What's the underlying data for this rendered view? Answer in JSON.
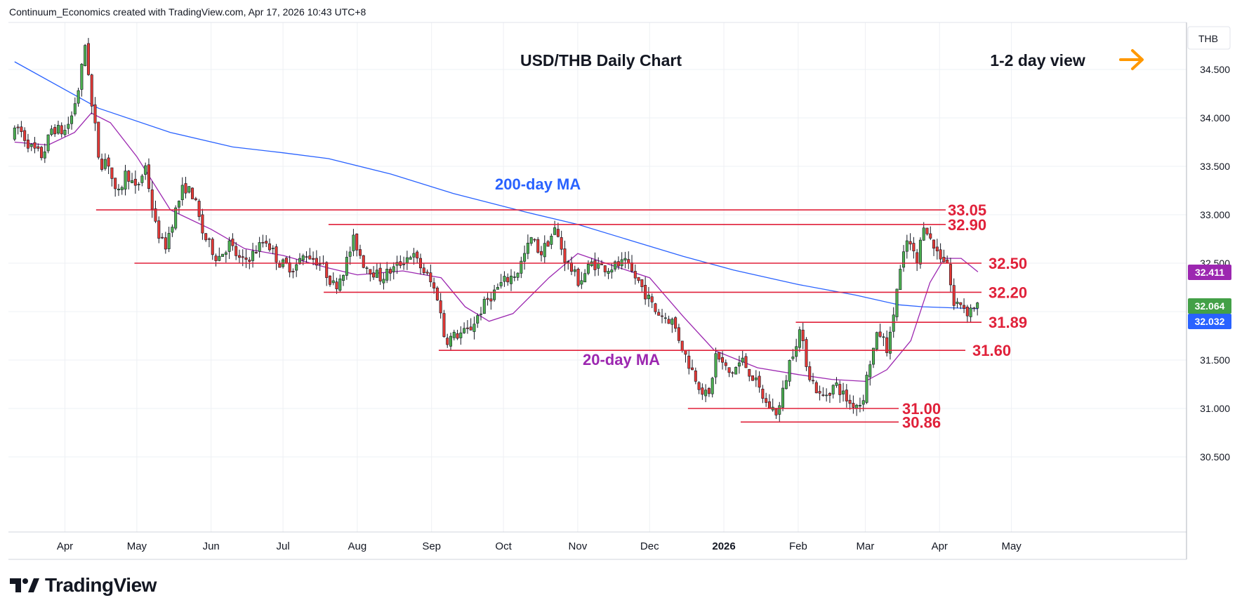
{
  "attribution": "Continuum_Economics created with TradingView.com, Apr 17, 2026 10:43 UTC+8",
  "logo_text": "TradingView",
  "chart_data": {
    "type": "candlestick",
    "title": "USD/THB Daily Chart",
    "view_label": "1-2 day view",
    "currency_label": "THB",
    "ylim": [
      30.4,
      34.85
    ],
    "grid": true,
    "y_ticks": [
      "30.500",
      "31.000",
      "31.500",
      "32.000",
      "32.500",
      "33.000",
      "33.500",
      "34.000",
      "34.500"
    ],
    "x_ticks": [
      "Apr",
      "May",
      "Jun",
      "Jul",
      "Aug",
      "Sep",
      "Oct",
      "Nov",
      "Dec",
      "2026",
      "Feb",
      "Mar",
      "Apr",
      "May"
    ],
    "levels": [
      {
        "value": 33.05,
        "label": "33.05",
        "x_start": "2025-04-14"
      },
      {
        "value": 32.9,
        "label": "32.90",
        "x_start": "2025-07-20"
      },
      {
        "value": 32.5,
        "label": "32.50",
        "x_start": "2025-04-30"
      },
      {
        "value": 32.2,
        "label": "32.20",
        "x_start": "2025-07-18"
      },
      {
        "value": 31.89,
        "label": "31.89",
        "x_start": "2026-01-31"
      },
      {
        "value": 31.6,
        "label": "31.60",
        "x_start": "2025-09-04"
      },
      {
        "value": 31.0,
        "label": "31.00",
        "x_start": "2025-12-17"
      },
      {
        "value": 30.86,
        "label": "30.86",
        "x_start": "2026-01-08"
      }
    ],
    "series": [
      {
        "name": "200-day MA",
        "color": "#2962ff",
        "points": [
          [
            "2025-03-11",
            34.58
          ],
          [
            "2025-04-15",
            34.1
          ],
          [
            "2025-05-15",
            33.85
          ],
          [
            "2025-06-10",
            33.7
          ],
          [
            "2025-07-01",
            33.64
          ],
          [
            "2025-07-20",
            33.58
          ],
          [
            "2025-08-15",
            33.42
          ],
          [
            "2025-09-10",
            33.22
          ],
          [
            "2025-10-10",
            33.03
          ],
          [
            "2025-11-01",
            32.9
          ],
          [
            "2025-11-25",
            32.72
          ],
          [
            "2025-12-15",
            32.57
          ],
          [
            "2026-01-05",
            32.43
          ],
          [
            "2026-02-01",
            32.28
          ],
          [
            "2026-02-25",
            32.17
          ],
          [
            "2026-03-15",
            32.07
          ],
          [
            "2026-03-25",
            32.05
          ],
          [
            "2026-04-17",
            32.03
          ]
        ]
      },
      {
        "name": "20-day MA",
        "color": "#9c27b0",
        "points": [
          [
            "2025-03-11",
            33.75
          ],
          [
            "2025-03-25",
            33.72
          ],
          [
            "2025-04-05",
            33.85
          ],
          [
            "2025-04-12",
            34.05
          ],
          [
            "2025-04-20",
            33.95
          ],
          [
            "2025-05-01",
            33.6
          ],
          [
            "2025-05-15",
            33.05
          ],
          [
            "2025-06-01",
            32.85
          ],
          [
            "2025-06-15",
            32.65
          ],
          [
            "2025-07-01",
            32.58
          ],
          [
            "2025-07-20",
            32.45
          ],
          [
            "2025-08-01",
            32.38
          ],
          [
            "2025-08-20",
            32.42
          ],
          [
            "2025-09-05",
            32.35
          ],
          [
            "2025-09-15",
            32.05
          ],
          [
            "2025-09-25",
            31.9
          ],
          [
            "2025-10-05",
            31.98
          ],
          [
            "2025-10-20",
            32.35
          ],
          [
            "2025-11-01",
            32.6
          ],
          [
            "2025-11-15",
            32.48
          ],
          [
            "2025-12-01",
            32.35
          ],
          [
            "2025-12-15",
            31.95
          ],
          [
            "2025-12-28",
            31.6
          ],
          [
            "2026-01-15",
            31.42
          ],
          [
            "2026-02-01",
            31.35
          ],
          [
            "2026-02-15",
            31.3
          ],
          [
            "2026-03-01",
            31.28
          ],
          [
            "2026-03-10",
            31.4
          ],
          [
            "2026-03-20",
            31.7
          ],
          [
            "2026-03-28",
            32.3
          ],
          [
            "2026-04-03",
            32.55
          ],
          [
            "2026-04-10",
            32.55
          ],
          [
            "2026-04-17",
            32.41
          ]
        ]
      }
    ],
    "ohlc_path": [
      [
        "2025-03-11",
        33.8
      ],
      [
        "2025-03-14",
        33.9
      ],
      [
        "2025-03-19",
        33.7
      ],
      [
        "2025-03-24",
        33.6
      ],
      [
        "2025-03-28",
        33.9
      ],
      [
        "2025-04-02",
        33.85
      ],
      [
        "2025-04-05",
        34.0
      ],
      [
        "2025-04-08",
        34.3
      ],
      [
        "2025-04-10",
        34.6
      ],
      [
        "2025-04-11",
        34.8
      ],
      [
        "2025-04-12",
        34.55
      ],
      [
        "2025-04-13",
        34.2
      ],
      [
        "2025-04-15",
        33.9
      ],
      [
        "2025-04-17",
        33.5
      ],
      [
        "2025-04-20",
        33.6
      ],
      [
        "2025-04-24",
        33.15
      ],
      [
        "2025-04-28",
        33.45
      ],
      [
        "2025-05-02",
        33.25
      ],
      [
        "2025-05-06",
        33.5
      ],
      [
        "2025-05-10",
        32.9
      ],
      [
        "2025-05-14",
        32.65
      ],
      [
        "2025-05-18",
        33.0
      ],
      [
        "2025-05-22",
        33.3
      ],
      [
        "2025-05-26",
        33.2
      ],
      [
        "2025-05-30",
        32.8
      ],
      [
        "2025-06-05",
        32.55
      ],
      [
        "2025-06-10",
        32.7
      ],
      [
        "2025-06-15",
        32.5
      ],
      [
        "2025-06-20",
        32.6
      ],
      [
        "2025-06-25",
        32.75
      ],
      [
        "2025-07-01",
        32.5
      ],
      [
        "2025-07-07",
        32.45
      ],
      [
        "2025-07-12",
        32.6
      ],
      [
        "2025-07-18",
        32.5
      ],
      [
        "2025-07-24",
        32.25
      ],
      [
        "2025-07-28",
        32.45
      ],
      [
        "2025-08-01",
        32.75
      ],
      [
        "2025-08-05",
        32.5
      ],
      [
        "2025-08-12",
        32.35
      ],
      [
        "2025-08-18",
        32.45
      ],
      [
        "2025-08-25",
        32.6
      ],
      [
        "2025-09-01",
        32.35
      ],
      [
        "2025-09-05",
        32.15
      ],
      [
        "2025-09-08",
        31.7
      ],
      [
        "2025-09-12",
        31.75
      ],
      [
        "2025-09-18",
        31.8
      ],
      [
        "2025-09-25",
        32.1
      ],
      [
        "2025-10-02",
        32.3
      ],
      [
        "2025-10-08",
        32.4
      ],
      [
        "2025-10-14",
        32.75
      ],
      [
        "2025-10-18",
        32.6
      ],
      [
        "2025-10-24",
        32.85
      ],
      [
        "2025-10-28",
        32.55
      ],
      [
        "2025-11-03",
        32.3
      ],
      [
        "2025-11-08",
        32.5
      ],
      [
        "2025-11-15",
        32.45
      ],
      [
        "2025-11-22",
        32.5
      ],
      [
        "2025-11-28",
        32.3
      ],
      [
        "2025-12-05",
        32.0
      ],
      [
        "2025-12-12",
        31.9
      ],
      [
        "2025-12-18",
        31.5
      ],
      [
        "2025-12-24",
        31.2
      ],
      [
        "2025-12-27",
        31.1
      ],
      [
        "2025-12-30",
        31.55
      ],
      [
        "2026-01-05",
        31.35
      ],
      [
        "2026-01-10",
        31.5
      ],
      [
        "2026-01-15",
        31.3
      ],
      [
        "2026-01-20",
        31.05
      ],
      [
        "2026-01-25",
        30.95
      ],
      [
        "2026-01-30",
        31.5
      ],
      [
        "2026-02-03",
        31.8
      ],
      [
        "2026-02-07",
        31.35
      ],
      [
        "2026-02-12",
        31.1
      ],
      [
        "2026-02-18",
        31.25
      ],
      [
        "2026-02-24",
        31.05
      ],
      [
        "2026-03-01",
        31.05
      ],
      [
        "2026-03-04",
        31.45
      ],
      [
        "2026-03-08",
        31.8
      ],
      [
        "2026-03-12",
        31.6
      ],
      [
        "2026-03-16",
        32.3
      ],
      [
        "2026-03-20",
        32.75
      ],
      [
        "2026-03-24",
        32.5
      ],
      [
        "2026-03-27",
        32.95
      ],
      [
        "2026-03-30",
        32.7
      ],
      [
        "2026-04-02",
        32.6
      ],
      [
        "2026-04-06",
        32.5
      ],
      [
        "2026-04-08",
        32.05
      ],
      [
        "2026-04-11",
        32.1
      ],
      [
        "2026-04-14",
        32.0
      ],
      [
        "2026-04-17",
        32.06
      ]
    ],
    "price_labels": [
      {
        "value": 32.411,
        "label": "32.411",
        "color": "#9c27b0"
      },
      {
        "value": 32.064,
        "label": "32.064",
        "color": "#43a047"
      },
      {
        "value": 32.032,
        "label": "32.032",
        "color": "#2962ff"
      }
    ],
    "annotations": [
      {
        "text": "200-day MA",
        "color": "#2962ff"
      },
      {
        "text": "20-day MA",
        "color": "#9c27b0"
      }
    ],
    "colors": {
      "up": "#4caf50",
      "down": "#e53935",
      "level": "#e0213a",
      "level_text": "#e0213a",
      "arrow": "#ff9800",
      "grid": "#eef0f4"
    }
  }
}
